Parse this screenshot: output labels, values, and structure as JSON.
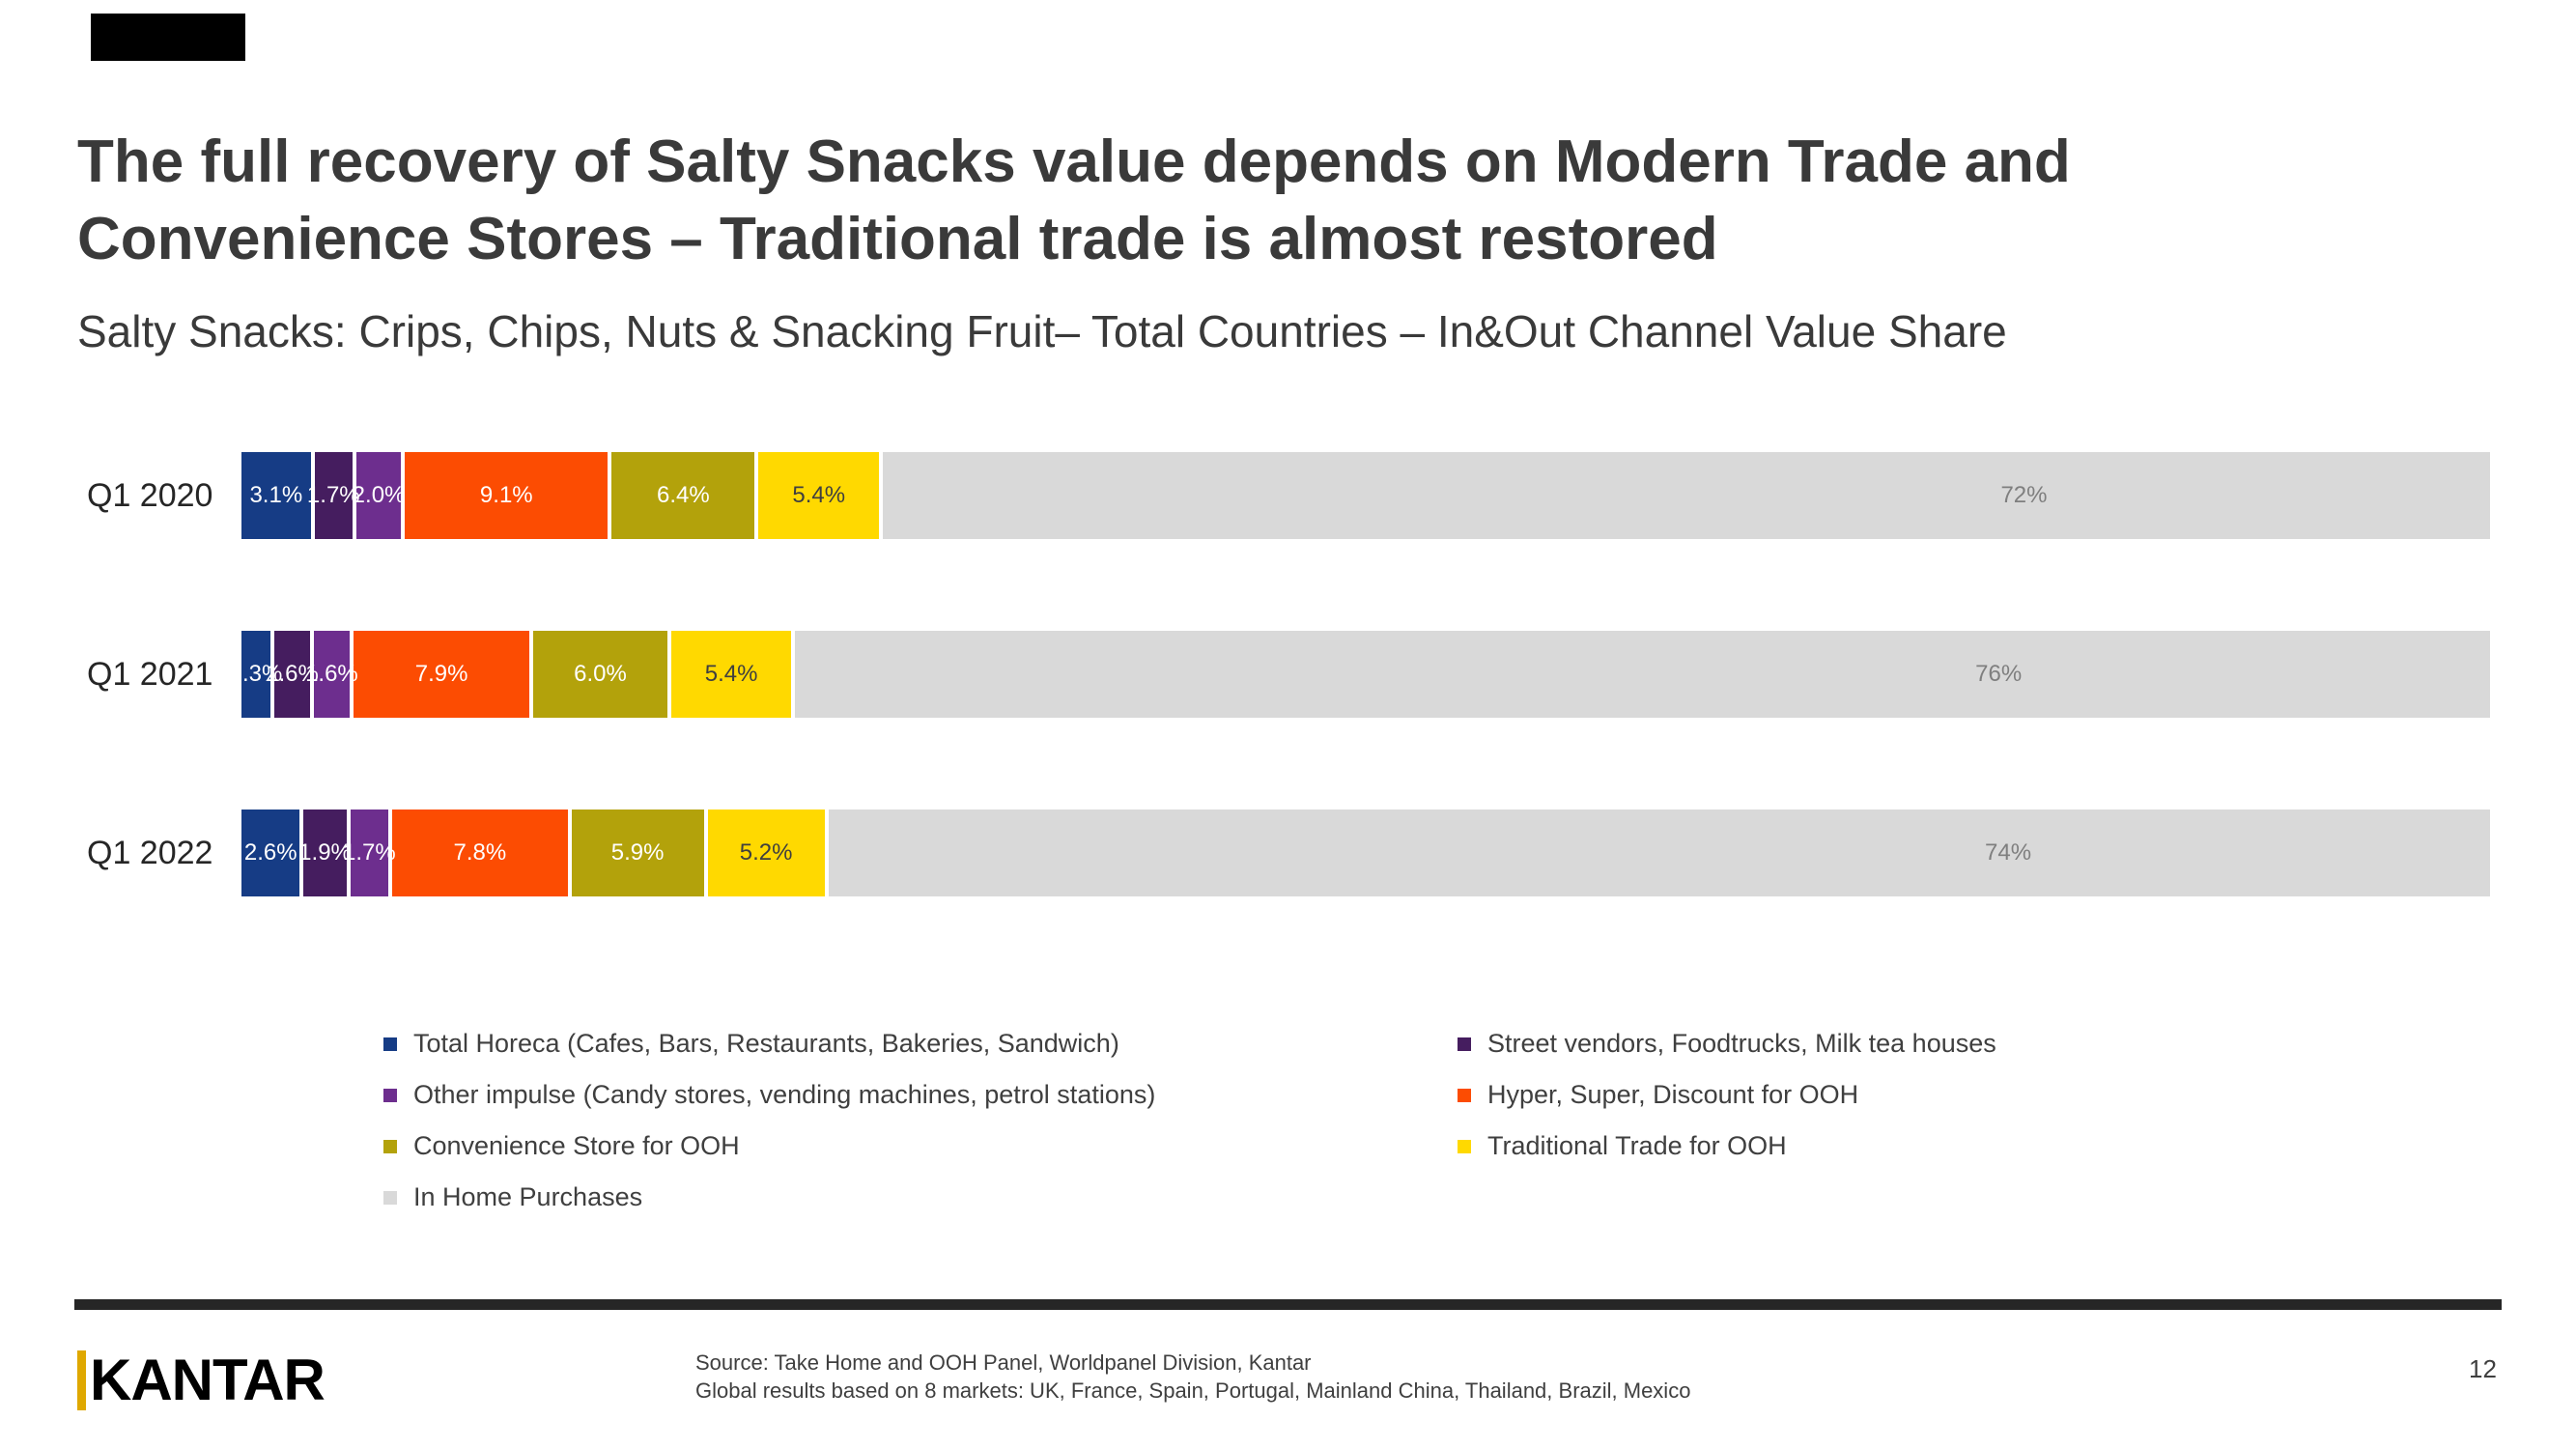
{
  "slide": {
    "title": "The full recovery of Salty Snacks value depends on Modern Trade and Convenience Stores –  Traditional trade is almost restored",
    "subtitle": "Salty Snacks: Crips, Chips, Nuts & Snacking Fruit– Total Countries – In&Out Channel Value Share"
  },
  "chart_data": {
    "type": "bar",
    "variant": "horizontal-stacked",
    "unit": "%",
    "xlim": [
      0,
      100
    ],
    "grid": false,
    "categories": [
      "Q1 2020",
      "Q1 2021",
      "Q1 2022"
    ],
    "series": [
      {
        "name": "Total Horeca (Cafes, Bars, Restaurants, Bakeries, Sandwich)",
        "color": "#163c85",
        "label_color": "#ffffff",
        "values": [
          3.1,
          1.3,
          2.6
        ],
        "labels": [
          "3.1%",
          "1.3%",
          "2.6%"
        ]
      },
      {
        "name": "Street vendors, Foodtrucks, Milk tea houses",
        "color": "#451d5f",
        "label_color": "#ffffff",
        "values": [
          1.7,
          1.6,
          1.9
        ],
        "labels": [
          "1.7%",
          "1.6%",
          "1.9%"
        ]
      },
      {
        "name": "Other impulse (Candy stores, vending machines, petrol stations)",
        "color": "#6d2e8e",
        "label_color": "#ffffff",
        "values": [
          2.0,
          1.6,
          1.7
        ],
        "labels": [
          "2.0%",
          "1.6%",
          "1.7%"
        ]
      },
      {
        "name": "Hyper, Super, Discount for OOH",
        "color": "#fc4c02",
        "label_color": "#ffffff",
        "values": [
          9.1,
          7.9,
          7.8
        ],
        "labels": [
          "9.1%",
          "7.9%",
          "7.8%"
        ]
      },
      {
        "name": "Convenience Store for OOH",
        "color": "#b3a20b",
        "label_color": "#ffffff",
        "values": [
          6.4,
          6.0,
          5.9
        ],
        "labels": [
          "6.4%",
          "6.0%",
          "5.9%"
        ]
      },
      {
        "name": "Traditional Trade for OOH",
        "color": "#ffd900",
        "label_color": "#3f3f3f",
        "values": [
          5.4,
          5.4,
          5.2
        ],
        "labels": [
          "5.4%",
          "5.4%",
          "5.2%"
        ]
      },
      {
        "name": "In Home Purchases",
        "color": "#d9d9d9",
        "label_color": "#7f7f7f",
        "values": [
          72,
          76,
          74
        ],
        "labels": [
          "72%",
          "76%",
          "74%"
        ]
      }
    ],
    "legend_position": "bottom-two-columns"
  },
  "legend": {
    "columns": [
      {
        "items": [
          {
            "label": "Total Horeca (Cafes, Bars, Restaurants, Bakeries, Sandwich)",
            "color": "#163c85"
          },
          {
            "label": "Other impulse (Candy stores, vending machines, petrol stations)",
            "color": "#6d2e8e"
          },
          {
            "label": "Convenience Store for OOH",
            "color": "#b3a20b"
          },
          {
            "label": "In Home Purchases",
            "color": "#d9d9d9"
          }
        ]
      },
      {
        "items": [
          {
            "label": "Street vendors, Foodtrucks, Milk tea houses",
            "color": "#451d5f"
          },
          {
            "label": "Hyper, Super, Discount for OOH",
            "color": "#fc4c02"
          },
          {
            "label": "Traditional Trade for OOH",
            "color": "#ffd900"
          }
        ]
      }
    ]
  },
  "footer": {
    "brand": "KANTAR",
    "brand_accent_color": "#dfa800",
    "source_line1": "Source: Take Home and OOH Panel, Worldpanel Division, Kantar",
    "source_line2": "Global results based on 8 markets: UK, France, Spain, Portugal, Mainland China, Thailand, Brazil, Mexico",
    "page_number": "12"
  }
}
